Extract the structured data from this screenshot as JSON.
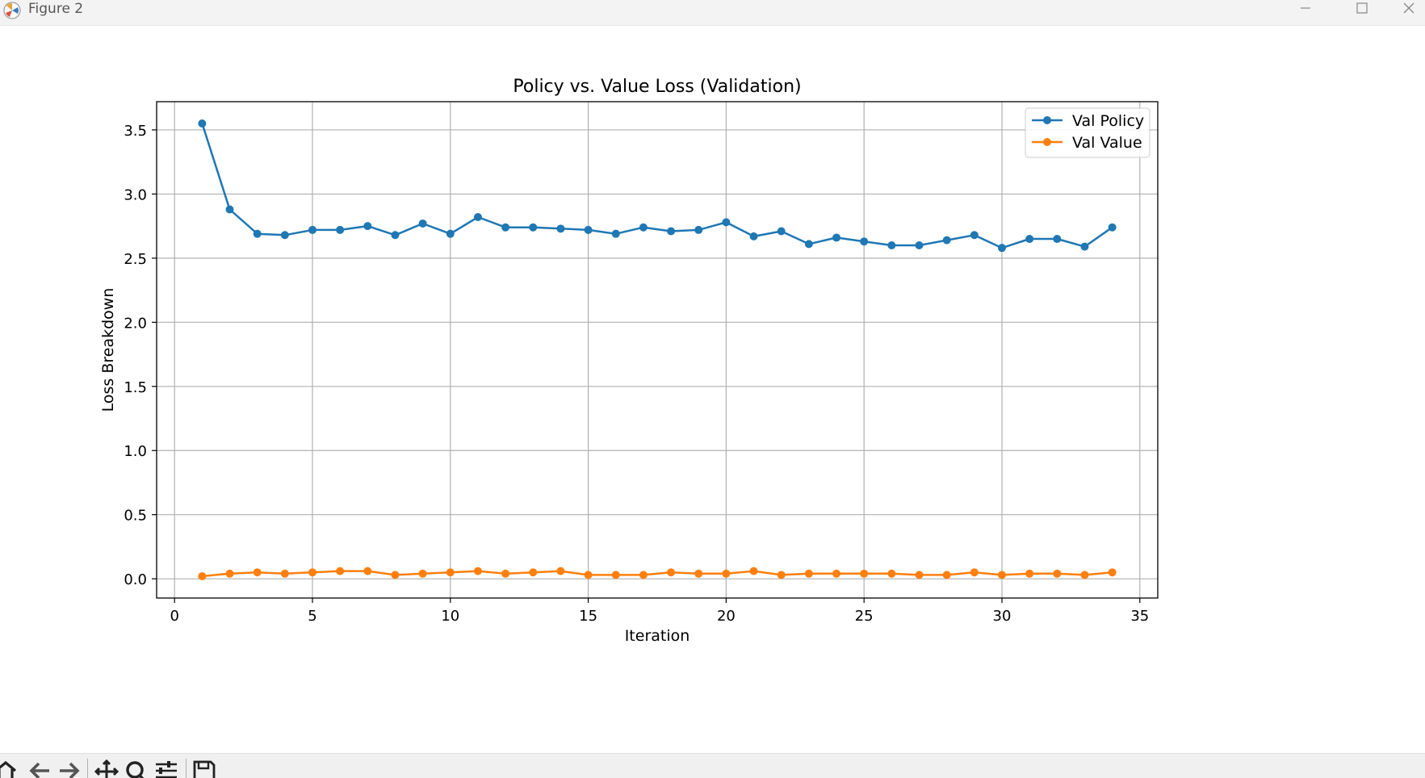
{
  "window": {
    "title": "Figure 2",
    "icons": {
      "app": "matplotlib-icon",
      "minimize": "minimize-icon",
      "maximize": "maximize-icon",
      "close": "close-icon"
    }
  },
  "toolbar": {
    "tools": [
      "home-icon",
      "back-arrow-icon",
      "forward-arrow-icon",
      "pan-icon",
      "zoom-icon",
      "configure-subplots-icon",
      "save-icon"
    ]
  },
  "chart_data": {
    "type": "line",
    "title": "Policy vs. Value Loss (Validation)",
    "xlabel": "Iteration",
    "ylabel": "Loss Breakdown",
    "xlim": [
      -0.65,
      35.65
    ],
    "ylim": [
      -0.15,
      3.72
    ],
    "xticks": [
      0,
      5,
      10,
      15,
      20,
      25,
      30,
      35
    ],
    "xtick_labels": [
      "0",
      "5",
      "10",
      "15",
      "20",
      "25",
      "30",
      "35"
    ],
    "yticks": [
      0.0,
      0.5,
      1.0,
      1.5,
      2.0,
      2.5,
      3.0,
      3.5
    ],
    "ytick_labels": [
      "0.0",
      "0.5",
      "1.0",
      "1.5",
      "2.0",
      "2.5",
      "3.0",
      "3.5"
    ],
    "grid": true,
    "legend_position": "top-right",
    "marker": "circle",
    "x": [
      1,
      2,
      3,
      4,
      5,
      6,
      7,
      8,
      9,
      10,
      11,
      12,
      13,
      14,
      15,
      16,
      17,
      18,
      19,
      20,
      21,
      22,
      23,
      24,
      25,
      26,
      27,
      28,
      29,
      30,
      31,
      32,
      33,
      34
    ],
    "series": [
      {
        "name": "Val Policy",
        "color": "#1f77b4",
        "values": [
          3.55,
          2.88,
          2.69,
          2.68,
          2.72,
          2.72,
          2.75,
          2.68,
          2.77,
          2.69,
          2.82,
          2.74,
          2.74,
          2.73,
          2.72,
          2.69,
          2.74,
          2.71,
          2.72,
          2.78,
          2.67,
          2.71,
          2.61,
          2.66,
          2.63,
          2.6,
          2.6,
          2.64,
          2.68,
          2.58,
          2.65,
          2.65,
          2.59,
          2.74
        ]
      },
      {
        "name": "Val Value",
        "color": "#ff7f0e",
        "values": [
          0.02,
          0.04,
          0.05,
          0.04,
          0.05,
          0.06,
          0.06,
          0.03,
          0.04,
          0.05,
          0.06,
          0.04,
          0.05,
          0.06,
          0.03,
          0.03,
          0.03,
          0.05,
          0.04,
          0.04,
          0.06,
          0.03,
          0.04,
          0.04,
          0.04,
          0.04,
          0.03,
          0.03,
          0.05,
          0.03,
          0.04,
          0.04,
          0.03,
          0.05
        ]
      }
    ]
  }
}
